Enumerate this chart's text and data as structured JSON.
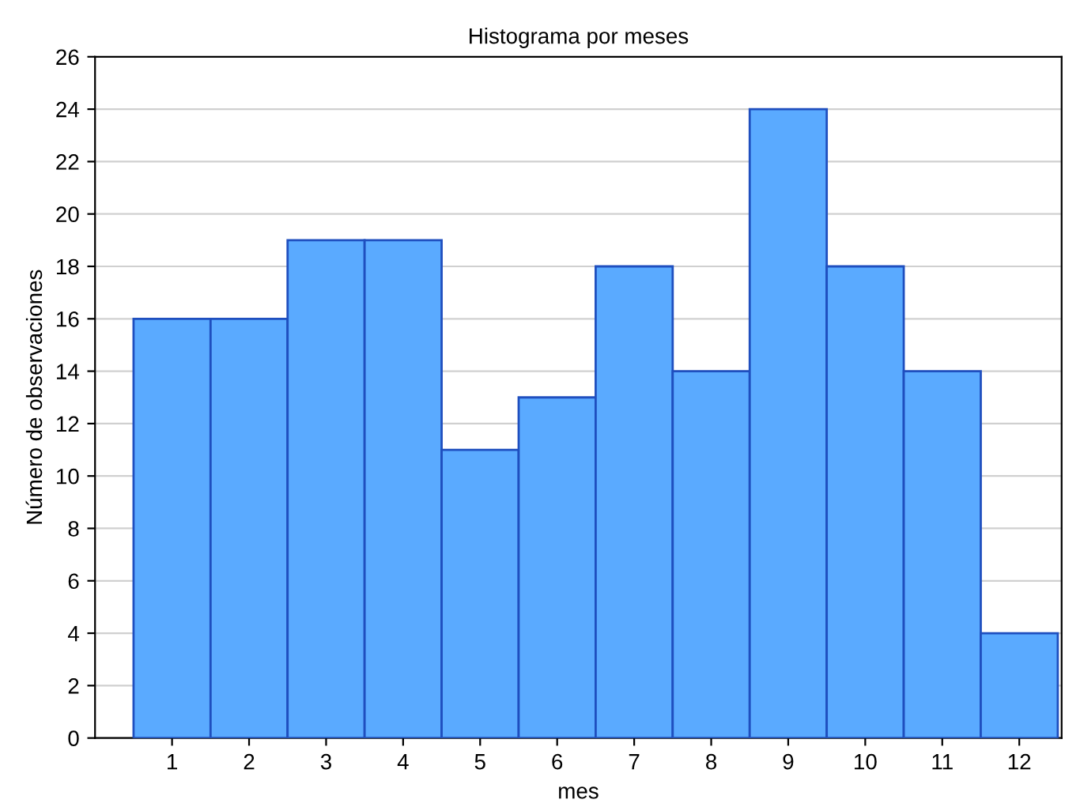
{
  "chart_data": {
    "type": "bar",
    "title": "Histograma por meses",
    "xlabel": "mes",
    "ylabel": "Número de observaciones",
    "categories": [
      "1",
      "2",
      "3",
      "4",
      "5",
      "6",
      "7",
      "8",
      "9",
      "10",
      "11",
      "12"
    ],
    "series": [
      {
        "color": "#5aaaff",
        "values": [
          16,
          16,
          19,
          19,
          11,
          13,
          18,
          14,
          24,
          18,
          14,
          4
        ]
      }
    ],
    "ylim": [
      0,
      26
    ],
    "yticks": [
      0,
      2,
      4,
      6,
      8,
      10,
      12,
      14,
      16,
      18,
      20,
      22,
      24,
      26
    ],
    "grid": "y"
  }
}
